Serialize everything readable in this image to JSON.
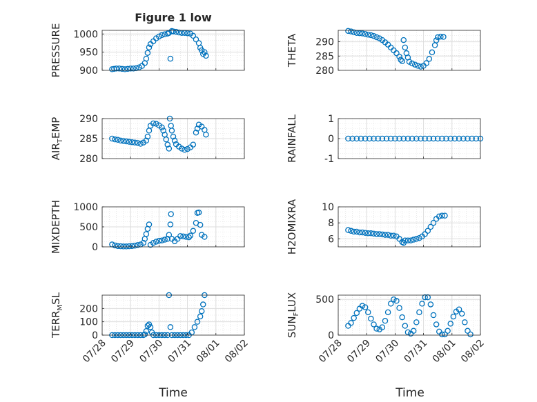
{
  "figure": {
    "title": "Figure 1 low",
    "marker_color": "#0072bd",
    "axis_color": "#262626",
    "grid_color": "#dcdcdc"
  },
  "chart_data": [
    {
      "type": "scatter",
      "ylabel": "PRESSURE",
      "ylim": [
        900,
        1010
      ],
      "yticks": [
        "900",
        "950",
        "1000"
      ],
      "ytick_values": [
        900,
        950,
        1000
      ],
      "xlim": [
        0,
        5
      ],
      "xticks": [
        "07/28",
        "07/29",
        "07/30",
        "07/31",
        "08/01",
        "08/02"
      ],
      "grid": true,
      "points": [
        [
          0.35,
          903
        ],
        [
          0.42,
          904
        ],
        [
          0.5,
          905
        ],
        [
          0.6,
          905
        ],
        [
          0.7,
          904
        ],
        [
          0.8,
          903
        ],
        [
          0.9,
          904
        ],
        [
          1.0,
          905
        ],
        [
          1.1,
          905
        ],
        [
          1.2,
          906
        ],
        [
          1.3,
          908
        ],
        [
          1.4,
          912
        ],
        [
          1.5,
          920
        ],
        [
          1.55,
          932
        ],
        [
          1.6,
          948
        ],
        [
          1.65,
          963
        ],
        [
          1.7,
          972
        ],
        [
          1.8,
          980
        ],
        [
          1.9,
          988
        ],
        [
          2.0,
          993
        ],
        [
          2.1,
          997
        ],
        [
          2.2,
          999
        ],
        [
          2.3,
          1001
        ],
        [
          2.35,
          1003
        ],
        [
          2.4,
          932
        ],
        [
          2.45,
          1008
        ],
        [
          2.5,
          1007
        ],
        [
          2.6,
          1006
        ],
        [
          2.7,
          1004
        ],
        [
          2.8,
          1003
        ],
        [
          2.9,
          1003
        ],
        [
          3.0,
          1002
        ],
        [
          3.1,
          1001
        ],
        [
          3.2,
          995
        ],
        [
          3.3,
          985
        ],
        [
          3.4,
          975
        ],
        [
          3.45,
          962
        ],
        [
          3.5,
          955
        ],
        [
          3.55,
          945
        ],
        [
          3.6,
          950
        ],
        [
          3.65,
          940
        ]
      ]
    },
    {
      "type": "scatter",
      "ylabel": "THETA",
      "ylim": [
        280,
        294
      ],
      "yticks": [
        "280",
        "285",
        "290"
      ],
      "ytick_values": [
        280,
        285,
        290
      ],
      "xlim": [
        0,
        5
      ],
      "xticks": [
        "07/28",
        "07/29",
        "07/30",
        "07/31",
        "08/01",
        "08/02"
      ],
      "grid": true,
      "points": [
        [
          0.35,
          293.8
        ],
        [
          0.45,
          293.6
        ],
        [
          0.55,
          293.3
        ],
        [
          0.65,
          293.1
        ],
        [
          0.75,
          293.0
        ],
        [
          0.85,
          292.9
        ],
        [
          0.95,
          292.7
        ],
        [
          1.05,
          292.5
        ],
        [
          1.15,
          292.3
        ],
        [
          1.25,
          292.0
        ],
        [
          1.35,
          291.6
        ],
        [
          1.45,
          291.2
        ],
        [
          1.55,
          290.6
        ],
        [
          1.65,
          289.8
        ],
        [
          1.75,
          289.0
        ],
        [
          1.85,
          288.0
        ],
        [
          1.95,
          287.0
        ],
        [
          2.05,
          286.0
        ],
        [
          2.15,
          284.8
        ],
        [
          2.2,
          283.7
        ],
        [
          2.25,
          283.2
        ],
        [
          2.3,
          290.6
        ],
        [
          2.35,
          288.0
        ],
        [
          2.4,
          286.0
        ],
        [
          2.45,
          284.5
        ],
        [
          2.5,
          283.0
        ],
        [
          2.6,
          282.4
        ],
        [
          2.7,
          282.0
        ],
        [
          2.8,
          281.6
        ],
        [
          2.9,
          281.3
        ],
        [
          3.0,
          281.6
        ],
        [
          3.1,
          282.5
        ],
        [
          3.2,
          284.0
        ],
        [
          3.3,
          286.3
        ],
        [
          3.4,
          288.8
        ],
        [
          3.45,
          290.5
        ],
        [
          3.5,
          291.6
        ],
        [
          3.6,
          291.8
        ],
        [
          3.7,
          291.7
        ]
      ]
    },
    {
      "type": "scatter",
      "ylabel": "AIR_TEMP",
      "ylim": [
        280,
        290
      ],
      "yticks": [
        "280",
        "285",
        "290"
      ],
      "ytick_values": [
        280,
        285,
        290
      ],
      "xlim": [
        0,
        5
      ],
      "xticks": [
        "07/28",
        "07/29",
        "07/30",
        "07/31",
        "08/01",
        "08/02"
      ],
      "grid": true,
      "points": [
        [
          0.35,
          285.0
        ],
        [
          0.45,
          284.8
        ],
        [
          0.55,
          284.7
        ],
        [
          0.65,
          284.5
        ],
        [
          0.75,
          284.4
        ],
        [
          0.85,
          284.3
        ],
        [
          0.95,
          284.2
        ],
        [
          1.05,
          284.1
        ],
        [
          1.15,
          284.0
        ],
        [
          1.25,
          283.9
        ],
        [
          1.35,
          283.7
        ],
        [
          1.45,
          284.0
        ],
        [
          1.55,
          284.5
        ],
        [
          1.6,
          285.5
        ],
        [
          1.65,
          287.0
        ],
        [
          1.7,
          288.2
        ],
        [
          1.8,
          288.8
        ],
        [
          1.9,
          288.7
        ],
        [
          2.0,
          288.3
        ],
        [
          2.1,
          287.8
        ],
        [
          2.15,
          287.0
        ],
        [
          2.2,
          286.0
        ],
        [
          2.25,
          284.8
        ],
        [
          2.3,
          283.5
        ],
        [
          2.35,
          282.5
        ],
        [
          2.38,
          290.0
        ],
        [
          2.42,
          288.2
        ],
        [
          2.45,
          287.0
        ],
        [
          2.5,
          285.5
        ],
        [
          2.55,
          284.5
        ],
        [
          2.6,
          283.6
        ],
        [
          2.7,
          283.0
        ],
        [
          2.8,
          282.5
        ],
        [
          2.9,
          282.2
        ],
        [
          3.0,
          282.4
        ],
        [
          3.1,
          282.8
        ],
        [
          3.2,
          283.5
        ],
        [
          3.3,
          286.5
        ],
        [
          3.35,
          287.5
        ],
        [
          3.4,
          288.5
        ],
        [
          3.5,
          288.0
        ],
        [
          3.6,
          287.2
        ],
        [
          3.65,
          286.0
        ]
      ]
    },
    {
      "type": "scatter",
      "ylabel": "RAINFALL",
      "ylim": [
        -1,
        1
      ],
      "yticks": [
        "-1",
        "0",
        "1"
      ],
      "ytick_values": [
        -1,
        0,
        1
      ],
      "xlim": [
        0,
        5
      ],
      "xticks": [
        "07/28",
        "07/29",
        "07/30",
        "07/31",
        "08/01",
        "08/02"
      ],
      "grid": true,
      "points": [
        [
          0.35,
          0
        ],
        [
          0.5,
          0
        ],
        [
          0.65,
          0
        ],
        [
          0.8,
          0
        ],
        [
          0.95,
          0
        ],
        [
          1.1,
          0
        ],
        [
          1.25,
          0
        ],
        [
          1.4,
          0
        ],
        [
          1.55,
          0
        ],
        [
          1.7,
          0
        ],
        [
          1.85,
          0
        ],
        [
          2.0,
          0
        ],
        [
          2.15,
          0
        ],
        [
          2.3,
          0
        ],
        [
          2.45,
          0
        ],
        [
          2.6,
          0
        ],
        [
          2.75,
          0
        ],
        [
          2.9,
          0
        ],
        [
          3.05,
          0
        ],
        [
          3.2,
          0
        ],
        [
          3.35,
          0
        ],
        [
          3.5,
          0
        ],
        [
          3.65,
          0
        ],
        [
          3.8,
          0
        ],
        [
          3.95,
          0
        ],
        [
          4.1,
          0
        ],
        [
          4.25,
          0
        ],
        [
          4.4,
          0
        ],
        [
          4.55,
          0
        ],
        [
          4.7,
          0
        ],
        [
          4.85,
          0
        ],
        [
          5.0,
          0
        ]
      ]
    },
    {
      "type": "scatter",
      "ylabel": "MIXDEPTH",
      "ylim": [
        0,
        1000
      ],
      "yticks": [
        "0",
        "500",
        "1000"
      ],
      "ytick_values": [
        0,
        500,
        1000
      ],
      "xlim": [
        0,
        5
      ],
      "xticks": [
        "07/28",
        "07/29",
        "07/30",
        "07/31",
        "08/01",
        "08/02"
      ],
      "grid": true,
      "points": [
        [
          0.35,
          60
        ],
        [
          0.45,
          35
        ],
        [
          0.55,
          20
        ],
        [
          0.65,
          15
        ],
        [
          0.75,
          10
        ],
        [
          0.85,
          10
        ],
        [
          0.95,
          15
        ],
        [
          1.05,
          20
        ],
        [
          1.15,
          30
        ],
        [
          1.25,
          45
        ],
        [
          1.35,
          60
        ],
        [
          1.45,
          100
        ],
        [
          1.5,
          200
        ],
        [
          1.55,
          320
        ],
        [
          1.6,
          450
        ],
        [
          1.65,
          560
        ],
        [
          1.7,
          50
        ],
        [
          1.8,
          100
        ],
        [
          1.9,
          130
        ],
        [
          2.0,
          150
        ],
        [
          2.1,
          160
        ],
        [
          2.2,
          180
        ],
        [
          2.3,
          200
        ],
        [
          2.35,
          300
        ],
        [
          2.4,
          560
        ],
        [
          2.42,
          820
        ],
        [
          2.45,
          200
        ],
        [
          2.55,
          140
        ],
        [
          2.65,
          200
        ],
        [
          2.75,
          270
        ],
        [
          2.85,
          260
        ],
        [
          2.95,
          250
        ],
        [
          3.05,
          240
        ],
        [
          3.1,
          280
        ],
        [
          3.2,
          400
        ],
        [
          3.3,
          600
        ],
        [
          3.35,
          850
        ],
        [
          3.4,
          860
        ],
        [
          3.45,
          550
        ],
        [
          3.5,
          300
        ],
        [
          3.6,
          250
        ]
      ]
    },
    {
      "type": "scatter",
      "ylabel": "H2OMIXRA",
      "ylim": [
        5,
        10
      ],
      "yticks": [
        "6",
        "8",
        "10"
      ],
      "ytick_values": [
        6,
        8,
        10
      ],
      "xlim": [
        0,
        5
      ],
      "xticks": [
        "07/28",
        "07/29",
        "07/30",
        "07/31",
        "08/01",
        "08/02"
      ],
      "grid": true,
      "points": [
        [
          0.35,
          7.1
        ],
        [
          0.45,
          7.0
        ],
        [
          0.55,
          6.9
        ],
        [
          0.65,
          6.9
        ],
        [
          0.75,
          6.8
        ],
        [
          0.85,
          6.8
        ],
        [
          0.95,
          6.75
        ],
        [
          1.05,
          6.7
        ],
        [
          1.15,
          6.7
        ],
        [
          1.25,
          6.65
        ],
        [
          1.35,
          6.6
        ],
        [
          1.45,
          6.6
        ],
        [
          1.55,
          6.55
        ],
        [
          1.65,
          6.5
        ],
        [
          1.75,
          6.5
        ],
        [
          1.85,
          6.4
        ],
        [
          1.95,
          6.4
        ],
        [
          2.05,
          6.3
        ],
        [
          2.15,
          6.0
        ],
        [
          2.25,
          5.6
        ],
        [
          2.3,
          5.5
        ],
        [
          2.35,
          5.8
        ],
        [
          2.45,
          5.8
        ],
        [
          2.55,
          5.8
        ],
        [
          2.65,
          5.9
        ],
        [
          2.75,
          6.0
        ],
        [
          2.85,
          6.1
        ],
        [
          2.95,
          6.3
        ],
        [
          3.05,
          6.6
        ],
        [
          3.15,
          7.0
        ],
        [
          3.25,
          7.5
        ],
        [
          3.35,
          8.0
        ],
        [
          3.45,
          8.5
        ],
        [
          3.55,
          8.8
        ],
        [
          3.65,
          8.9
        ],
        [
          3.75,
          8.9
        ]
      ]
    },
    {
      "type": "scatter",
      "ylabel": "TERR_MSL",
      "ylim": [
        0,
        300
      ],
      "yticks": [
        "0",
        "100",
        "200"
      ],
      "ytick_values": [
        0,
        100,
        200
      ],
      "xlim": [
        0,
        5
      ],
      "xticks": [
        "07/28",
        "07/29",
        "07/30",
        "07/31",
        "08/01",
        "08/02"
      ],
      "grid": true,
      "points": [
        [
          0.35,
          0
        ],
        [
          0.45,
          0
        ],
        [
          0.55,
          0
        ],
        [
          0.65,
          0
        ],
        [
          0.75,
          0
        ],
        [
          0.85,
          0
        ],
        [
          0.95,
          0
        ],
        [
          1.05,
          0
        ],
        [
          1.15,
          0
        ],
        [
          1.25,
          0
        ],
        [
          1.35,
          0
        ],
        [
          1.45,
          0
        ],
        [
          1.5,
          5
        ],
        [
          1.55,
          30
        ],
        [
          1.6,
          70
        ],
        [
          1.65,
          80
        ],
        [
          1.7,
          60
        ],
        [
          1.75,
          20
        ],
        [
          1.8,
          0
        ],
        [
          1.9,
          0
        ],
        [
          2.0,
          0
        ],
        [
          2.1,
          0
        ],
        [
          2.2,
          0
        ],
        [
          2.3,
          0
        ],
        [
          2.35,
          300
        ],
        [
          2.4,
          60
        ],
        [
          2.45,
          0
        ],
        [
          2.55,
          0
        ],
        [
          2.65,
          0
        ],
        [
          2.75,
          0
        ],
        [
          2.85,
          0
        ],
        [
          2.95,
          0
        ],
        [
          3.05,
          0
        ],
        [
          3.15,
          20
        ],
        [
          3.25,
          60
        ],
        [
          3.35,
          100
        ],
        [
          3.45,
          140
        ],
        [
          3.5,
          180
        ],
        [
          3.55,
          230
        ],
        [
          3.6,
          300
        ]
      ]
    },
    {
      "type": "scatter",
      "ylabel": "SUN_FLUX",
      "ylim": [
        0,
        560
      ],
      "yticks": [
        "0",
        "500"
      ],
      "ytick_values": [
        0,
        500
      ],
      "xlim": [
        0,
        5
      ],
      "xticks": [
        "07/28",
        "07/29",
        "07/30",
        "07/31",
        "08/01",
        "08/02"
      ],
      "grid": true,
      "points": [
        [
          0.35,
          130
        ],
        [
          0.45,
          170
        ],
        [
          0.55,
          240
        ],
        [
          0.65,
          310
        ],
        [
          0.75,
          370
        ],
        [
          0.85,
          410
        ],
        [
          0.95,
          390
        ],
        [
          1.05,
          320
        ],
        [
          1.15,
          230
        ],
        [
          1.25,
          150
        ],
        [
          1.35,
          90
        ],
        [
          1.45,
          80
        ],
        [
          1.55,
          110
        ],
        [
          1.65,
          200
        ],
        [
          1.75,
          320
        ],
        [
          1.85,
          440
        ],
        [
          1.95,
          500
        ],
        [
          2.05,
          480
        ],
        [
          2.15,
          380
        ],
        [
          2.25,
          250
        ],
        [
          2.35,
          130
        ],
        [
          2.45,
          40
        ],
        [
          2.55,
          20
        ],
        [
          2.65,
          60
        ],
        [
          2.75,
          180
        ],
        [
          2.85,
          320
        ],
        [
          2.95,
          440
        ],
        [
          3.05,
          530
        ],
        [
          3.15,
          530
        ],
        [
          3.25,
          430
        ],
        [
          3.35,
          280
        ],
        [
          3.45,
          150
        ],
        [
          3.55,
          50
        ],
        [
          3.65,
          10
        ],
        [
          3.75,
          10
        ],
        [
          3.85,
          60
        ],
        [
          3.95,
          160
        ],
        [
          4.05,
          260
        ],
        [
          4.15,
          330
        ],
        [
          4.25,
          360
        ],
        [
          4.35,
          300
        ],
        [
          4.45,
          180
        ],
        [
          4.55,
          60
        ],
        [
          4.65,
          10
        ]
      ]
    }
  ],
  "xlabel": "Time"
}
